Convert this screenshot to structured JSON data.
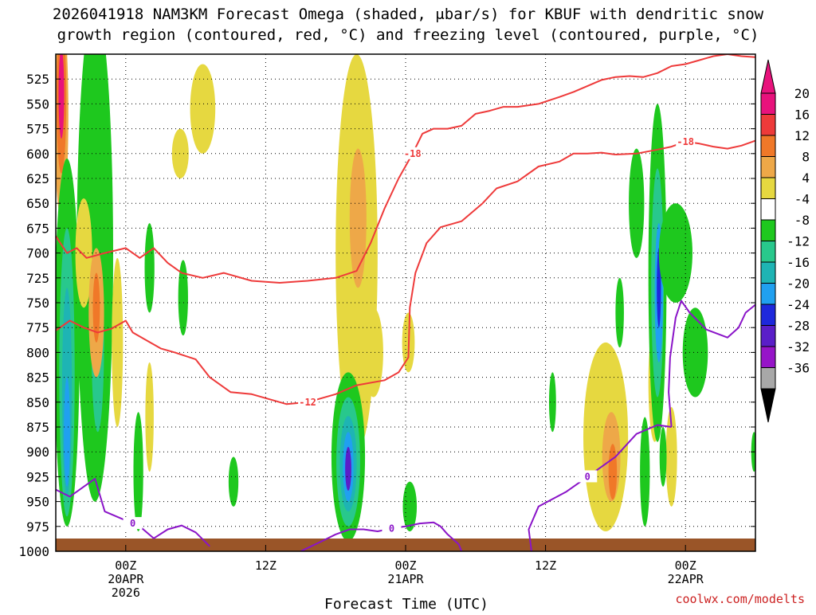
{
  "chart_data": {
    "type": "heatmap",
    "title_line1": "2026041918 NAM3KM Forecast Omega (shaded, μbar/s) for KBUF with dendritic snow",
    "title_line2": "growth region (contoured, red, °C) and freezing level (contoured, purple, °C)",
    "xlabel": "Forecast Time (UTC)",
    "credit": "coolwx.com/modelts",
    "x_hours_range": [
      -5,
      45
    ],
    "x_ticks": [
      {
        "hour": 0,
        "lines": [
          "00Z",
          "20APR",
          "2026"
        ]
      },
      {
        "hour": 10,
        "lines": [
          "12Z"
        ]
      },
      {
        "hour": 20,
        "lines": [
          "00Z",
          "21APR"
        ]
      },
      {
        "hour": 30,
        "lines": [
          "12Z"
        ]
      },
      {
        "hour": 40,
        "lines": [
          "00Z",
          "22APR"
        ]
      }
    ],
    "y_range_mb": [
      1000,
      500
    ],
    "y_ticks": [
      525,
      550,
      575,
      600,
      625,
      650,
      675,
      700,
      725,
      750,
      775,
      800,
      825,
      850,
      875,
      900,
      925,
      950,
      975,
      1000
    ],
    "colorbar": {
      "labels": [
        "20",
        "16",
        "12",
        "8",
        "4",
        "-4",
        "-8",
        "-12",
        "-16",
        "-20",
        "-24",
        "-28",
        "-32",
        "-36"
      ],
      "colors": [
        "#e8127c",
        "#ee3a3a",
        "#f07828",
        "#eea848",
        "#e6d840",
        "#ffffff",
        "#1ec81e",
        "#28c88c",
        "#1eb4b4",
        "#20a0f0",
        "#1e28dc",
        "#5a1ec8",
        "#9614c8",
        "#a8a8a8"
      ],
      "top_arrow_color": "#e8127c",
      "bottom_arrow_color": "#000000"
    },
    "omega_blobs": [
      {
        "x": -4.6,
        "p": 560,
        "rx": 0.5,
        "rp": 105,
        "color": "#eea848"
      },
      {
        "x": -4.6,
        "p": 545,
        "rx": 0.35,
        "rp": 75,
        "color": "#f07828"
      },
      {
        "x": -4.6,
        "p": 540,
        "rx": 0.2,
        "rp": 45,
        "color": "#e8127c"
      },
      {
        "x": -4.2,
        "p": 790,
        "rx": 0.9,
        "rp": 185,
        "color": "#1ec81e"
      },
      {
        "x": -4.2,
        "p": 820,
        "rx": 0.55,
        "rp": 145,
        "color": "#28c88c"
      },
      {
        "x": -4.2,
        "p": 840,
        "rx": 0.35,
        "rp": 105,
        "color": "#1eb4b4"
      },
      {
        "x": -4.2,
        "p": 880,
        "rx": 0.22,
        "rp": 55,
        "color": "#20a0f0"
      },
      {
        "x": -2.2,
        "p": 700,
        "rx": 1.3,
        "rp": 250,
        "color": "#1ec81e"
      },
      {
        "x": -2.0,
        "p": 790,
        "rx": 0.45,
        "rp": 90,
        "color": "#28c88c"
      },
      {
        "x": -3.0,
        "p": 700,
        "rx": 0.6,
        "rp": 55,
        "color": "#e6d840"
      },
      {
        "x": -2.1,
        "p": 760,
        "rx": 0.55,
        "rp": 65,
        "color": "#eea848"
      },
      {
        "x": -2.1,
        "p": 755,
        "rx": 0.25,
        "rp": 35,
        "color": "#f07828"
      },
      {
        "x": -0.6,
        "p": 790,
        "rx": 0.4,
        "rp": 85,
        "color": "#e6d840"
      },
      {
        "x": 0.9,
        "p": 920,
        "rx": 0.35,
        "rp": 60,
        "color": "#1ec81e"
      },
      {
        "x": 1.7,
        "p": 865,
        "rx": 0.3,
        "rp": 55,
        "color": "#e6d840"
      },
      {
        "x": 1.7,
        "p": 715,
        "rx": 0.35,
        "rp": 45,
        "color": "#1ec81e"
      },
      {
        "x": 4.1,
        "p": 745,
        "rx": 0.35,
        "rp": 38,
        "color": "#1ec81e"
      },
      {
        "x": 5.5,
        "p": 555,
        "rx": 0.9,
        "rp": 45,
        "color": "#e6d840"
      },
      {
        "x": 3.9,
        "p": 600,
        "rx": 0.6,
        "rp": 25,
        "color": "#e6d840"
      },
      {
        "x": 7.7,
        "p": 930,
        "rx": 0.35,
        "rp": 25,
        "color": "#1ec81e"
      },
      {
        "x": 16.5,
        "p": 700,
        "rx": 1.5,
        "rp": 200,
        "color": "#e6d840"
      },
      {
        "x": 16.6,
        "p": 665,
        "rx": 0.6,
        "rp": 70,
        "color": "#eea848"
      },
      {
        "x": 17.7,
        "p": 800,
        "rx": 0.7,
        "rp": 45,
        "color": "#e6d840"
      },
      {
        "x": 15.9,
        "p": 905,
        "rx": 1.2,
        "rp": 85,
        "color": "#1ec81e"
      },
      {
        "x": 15.9,
        "p": 910,
        "rx": 0.85,
        "rp": 65,
        "color": "#28c88c"
      },
      {
        "x": 15.9,
        "p": 912,
        "rx": 0.6,
        "rp": 48,
        "color": "#1eb4b4"
      },
      {
        "x": 15.9,
        "p": 915,
        "rx": 0.38,
        "rp": 35,
        "color": "#20a0f0"
      },
      {
        "x": 15.9,
        "p": 917,
        "rx": 0.22,
        "rp": 22,
        "color": "#5a1ec8"
      },
      {
        "x": 20.2,
        "p": 790,
        "rx": 0.45,
        "rp": 30,
        "color": "#e6d840"
      },
      {
        "x": 20.3,
        "p": 955,
        "rx": 0.5,
        "rp": 25,
        "color": "#1ec81e"
      },
      {
        "x": 34.3,
        "p": 885,
        "rx": 1.6,
        "rp": 95,
        "color": "#e6d840"
      },
      {
        "x": 34.7,
        "p": 905,
        "rx": 0.65,
        "rp": 45,
        "color": "#eea848"
      },
      {
        "x": 34.8,
        "p": 920,
        "rx": 0.3,
        "rp": 28,
        "color": "#f07828"
      },
      {
        "x": 37.8,
        "p": 830,
        "rx": 0.45,
        "rp": 60,
        "color": "#e6d840"
      },
      {
        "x": 36.5,
        "p": 650,
        "rx": 0.55,
        "rp": 55,
        "color": "#1ec81e"
      },
      {
        "x": 38.0,
        "p": 720,
        "rx": 0.65,
        "rp": 170,
        "color": "#1ec81e"
      },
      {
        "x": 38.0,
        "p": 730,
        "rx": 0.45,
        "rp": 115,
        "color": "#28c88c"
      },
      {
        "x": 38.1,
        "p": 740,
        "rx": 0.3,
        "rp": 70,
        "color": "#20a0f0"
      },
      {
        "x": 38.1,
        "p": 735,
        "rx": 0.15,
        "rp": 40,
        "color": "#1e28dc"
      },
      {
        "x": 39.3,
        "p": 700,
        "rx": 1.2,
        "rp": 50,
        "color": "#1ec81e"
      },
      {
        "x": 40.7,
        "p": 800,
        "rx": 0.9,
        "rp": 45,
        "color": "#1ec81e"
      },
      {
        "x": 39.0,
        "p": 905,
        "rx": 0.4,
        "rp": 50,
        "color": "#e6d840"
      },
      {
        "x": 37.1,
        "p": 920,
        "rx": 0.35,
        "rp": 55,
        "color": "#1ec81e"
      },
      {
        "x": 38.4,
        "p": 905,
        "rx": 0.25,
        "rp": 30,
        "color": "#1ec81e"
      },
      {
        "x": 35.3,
        "p": 760,
        "rx": 0.3,
        "rp": 35,
        "color": "#1ec81e"
      },
      {
        "x": 30.5,
        "p": 850,
        "rx": 0.25,
        "rp": 30,
        "color": "#1ec81e"
      },
      {
        "x": 44.9,
        "p": 900,
        "rx": 0.2,
        "rp": 20,
        "color": "#1ec81e"
      }
    ],
    "red_contours": [
      {
        "label": "-18",
        "points": [
          [
            -5,
            683
          ],
          [
            -4.2,
            700
          ],
          [
            -3.5,
            695
          ],
          [
            -2.8,
            705
          ],
          [
            -1.5,
            700
          ],
          [
            0,
            695
          ],
          [
            1.0,
            705
          ],
          [
            2.0,
            695
          ],
          [
            3.0,
            710
          ],
          [
            4.0,
            720
          ],
          [
            5.5,
            725
          ],
          [
            7.0,
            720
          ],
          [
            9.0,
            728
          ],
          [
            11,
            730
          ],
          [
            13,
            728
          ],
          [
            15,
            725
          ],
          [
            16.5,
            718
          ],
          [
            17.5,
            690
          ],
          [
            18.5,
            655
          ],
          [
            19.5,
            625
          ],
          [
            20.5,
            600
          ],
          [
            21.2,
            580
          ],
          [
            22,
            575
          ],
          [
            23,
            575
          ],
          [
            24,
            572
          ],
          [
            25,
            560
          ],
          [
            26,
            557
          ],
          [
            27,
            553
          ],
          [
            28,
            553
          ],
          [
            29.5,
            550
          ],
          [
            31,
            543
          ],
          [
            32,
            538
          ],
          [
            33,
            532
          ],
          [
            34,
            526
          ],
          [
            35,
            523
          ],
          [
            36,
            522
          ],
          [
            37,
            523
          ],
          [
            38,
            519
          ],
          [
            39,
            512
          ],
          [
            40,
            510
          ],
          [
            41,
            506
          ],
          [
            42,
            502
          ],
          [
            43,
            500
          ],
          [
            44,
            502
          ],
          [
            45,
            503
          ]
        ]
      },
      {
        "label": "-18",
        "points": [
          [
            35,
            601
          ],
          [
            36.5,
            600
          ],
          [
            38,
            596
          ],
          [
            39,
            593
          ],
          [
            40,
            588
          ],
          [
            41,
            590
          ],
          [
            42,
            593
          ],
          [
            43,
            595
          ],
          [
            44,
            592
          ],
          [
            45,
            587
          ]
        ]
      },
      {
        "label": "-12",
        "points": [
          [
            -5,
            778
          ],
          [
            -4,
            768
          ],
          [
            -3,
            775
          ],
          [
            -2,
            780
          ],
          [
            -1,
            776
          ],
          [
            0,
            768
          ],
          [
            0.5,
            780
          ],
          [
            1.5,
            788
          ],
          [
            2.5,
            796
          ],
          [
            3.5,
            800
          ],
          [
            5,
            807
          ],
          [
            6,
            825
          ],
          [
            7.5,
            840
          ],
          [
            9,
            842
          ],
          [
            10.5,
            848
          ],
          [
            11.5,
            852
          ],
          [
            13,
            850
          ],
          [
            15,
            842
          ],
          [
            16.5,
            833
          ],
          [
            18.5,
            828
          ],
          [
            19.5,
            820
          ],
          [
            20.2,
            805
          ],
          [
            20.3,
            755
          ],
          [
            20.7,
            720
          ],
          [
            21.5,
            690
          ],
          [
            22.5,
            674
          ],
          [
            24,
            668
          ],
          [
            25.5,
            650
          ],
          [
            26.5,
            635
          ],
          [
            28,
            628
          ],
          [
            29.5,
            613
          ],
          [
            31,
            608
          ],
          [
            32,
            600
          ],
          [
            33,
            600
          ],
          [
            34,
            599
          ],
          [
            35,
            601
          ]
        ]
      }
    ],
    "purple_contours": [
      {
        "label": "0",
        "points": [
          [
            -5,
            938
          ],
          [
            -4,
            945
          ],
          [
            -3,
            935
          ],
          [
            -2.2,
            927
          ],
          [
            -1.5,
            960
          ],
          [
            0.5,
            972
          ],
          [
            1.0,
            975
          ],
          [
            2.0,
            987
          ],
          [
            3.0,
            978
          ],
          [
            4.0,
            974
          ],
          [
            5.0,
            981
          ],
          [
            6.0,
            995
          ]
        ]
      },
      {
        "label": "0",
        "points": [
          [
            12.5,
            1000
          ],
          [
            14,
            990
          ],
          [
            15,
            983
          ],
          [
            16,
            978
          ],
          [
            17,
            978
          ],
          [
            18,
            980
          ],
          [
            19,
            977
          ],
          [
            20,
            975
          ],
          [
            21,
            972
          ],
          [
            22,
            971
          ],
          [
            22.5,
            975
          ],
          [
            23,
            983
          ],
          [
            23.8,
            993
          ],
          [
            24,
            1000
          ]
        ]
      },
      {
        "label": "0",
        "points": [
          [
            29,
            1000
          ],
          [
            28.8,
            978
          ],
          [
            29.5,
            955
          ],
          [
            31.5,
            940
          ],
          [
            33,
            925
          ],
          [
            35,
            905
          ],
          [
            36.5,
            882
          ],
          [
            38,
            873
          ],
          [
            39,
            875
          ]
        ]
      },
      {
        "label": "",
        "points": [
          [
            39,
            875
          ],
          [
            38.8,
            840
          ],
          [
            38.9,
            805
          ],
          [
            39.3,
            765
          ],
          [
            39.7,
            748
          ],
          [
            40.3,
            760
          ],
          [
            41.5,
            777
          ],
          [
            43,
            785
          ],
          [
            43.8,
            775
          ],
          [
            44.3,
            760
          ],
          [
            45,
            752
          ]
        ]
      }
    ]
  }
}
